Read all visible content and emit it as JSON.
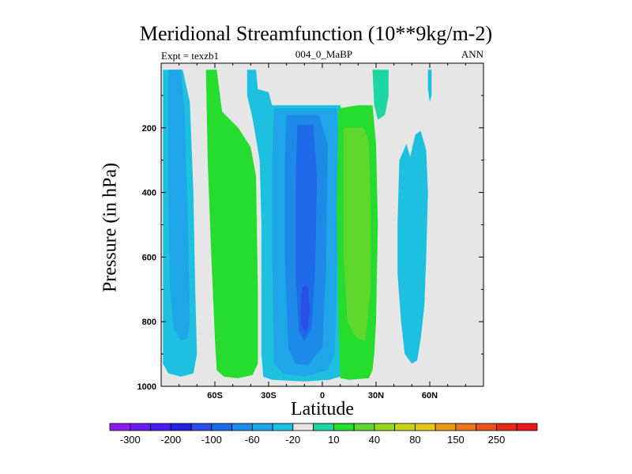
{
  "chart_data": {
    "type": "heatmap",
    "subtype": "filled-contour",
    "title": "Meridional Streamfunction (10**9kg/m-2)",
    "left_string": "Expt = texzb1",
    "center_string": "004_0_MaBP",
    "right_string": "ANN",
    "xlabel": "Latitude",
    "ylabel": "Pressure (in hPa)",
    "xlim": [
      -90,
      90
    ],
    "ylim": [
      1000,
      0
    ],
    "x_ticks": [
      {
        "value": -60,
        "label": "60S"
      },
      {
        "value": -30,
        "label": "30S"
      },
      {
        "value": 0,
        "label": "0"
      },
      {
        "value": 30,
        "label": "30N"
      },
      {
        "value": 60,
        "label": "60N"
      }
    ],
    "y_ticks": [
      {
        "value": 200,
        "label": "200"
      },
      {
        "value": 400,
        "label": "400"
      },
      {
        "value": 600,
        "label": "600"
      },
      {
        "value": 800,
        "label": "800"
      },
      {
        "value": 1000,
        "label": "1000"
      }
    ],
    "background_color": "#e6e6e6",
    "colorbar": {
      "colors": [
        "#8a1ef0",
        "#6a1cf0",
        "#4a1ef0",
        "#2222e0",
        "#2a4ee8",
        "#1e6ae8",
        "#1e8ae8",
        "#1ea6e8",
        "#1ec0e0",
        "#e6e6e6",
        "#1ed6a0",
        "#26dc2e",
        "#5ed82a",
        "#96d81e",
        "#c6d21a",
        "#e6c81a",
        "#e69a1a",
        "#e6781a",
        "#e6521a",
        "#e62a1a",
        "#e61a1a"
      ],
      "labels": [
        "-300",
        "-200",
        "-100",
        "-60",
        "-20",
        "10",
        "40",
        "80",
        "150",
        "250"
      ]
    },
    "regions": [
      {
        "color": "#1ec0e0",
        "points": [
          [
            -89,
            20
          ],
          [
            -78,
            20
          ],
          [
            -74,
            120
          ],
          [
            -72,
            400
          ],
          [
            -71,
            700
          ],
          [
            -70,
            900
          ],
          [
            -72,
            960
          ],
          [
            -79,
            970
          ],
          [
            -86,
            960
          ],
          [
            -89,
            930
          ]
        ]
      },
      {
        "color": "#1ea6e8",
        "points": [
          [
            -86,
            20
          ],
          [
            -79,
            20
          ],
          [
            -77,
            150
          ],
          [
            -75,
            500
          ],
          [
            -74,
            800
          ],
          [
            -75,
            850
          ],
          [
            -79,
            860
          ],
          [
            -83,
            820
          ],
          [
            -85,
            700
          ],
          [
            -86,
            400
          ],
          [
            -86,
            200
          ]
        ]
      },
      {
        "color": "#26dc2e",
        "points": [
          [
            -65,
            20
          ],
          [
            -59,
            20
          ],
          [
            -56,
            150
          ],
          [
            -47,
            200
          ],
          [
            -40,
            260
          ],
          [
            -37,
            350
          ],
          [
            -36,
            700
          ],
          [
            -36,
            930
          ],
          [
            -39,
            965
          ],
          [
            -47,
            975
          ],
          [
            -55,
            970
          ],
          [
            -59,
            950
          ],
          [
            -60,
            850
          ],
          [
            -62,
            600
          ],
          [
            -64,
            300
          ]
        ]
      },
      {
        "color": "#1ec0e0",
        "points": [
          [
            -42,
            20
          ],
          [
            -37,
            20
          ],
          [
            -36,
            80
          ],
          [
            -30,
            90
          ],
          [
            -28,
            130
          ],
          [
            10,
            130
          ],
          [
            13,
            200
          ],
          [
            11,
            600
          ],
          [
            10,
            970
          ],
          [
            4,
            980
          ],
          [
            -10,
            985
          ],
          [
            -28,
            980
          ],
          [
            -33,
            970
          ],
          [
            -34,
            900
          ],
          [
            -34,
            500
          ],
          [
            -35,
            300
          ],
          [
            -39,
            170
          ],
          [
            -42,
            100
          ]
        ]
      },
      {
        "color": "#1ea6e8",
        "points": [
          [
            -27,
            140
          ],
          [
            8,
            140
          ],
          [
            10,
            300
          ],
          [
            8,
            650
          ],
          [
            7,
            900
          ],
          [
            3,
            950
          ],
          [
            -10,
            970
          ],
          [
            -22,
            960
          ],
          [
            -27,
            930
          ],
          [
            -28,
            600
          ],
          [
            -28,
            300
          ]
        ]
      },
      {
        "color": "#1e8ae8",
        "points": [
          [
            -20,
            160
          ],
          [
            -2,
            160
          ],
          [
            3,
            250
          ],
          [
            2,
            650
          ],
          [
            0,
            880
          ],
          [
            -8,
            935
          ],
          [
            -15,
            930
          ],
          [
            -19,
            880
          ],
          [
            -21,
            600
          ],
          [
            -21,
            300
          ]
        ]
      },
      {
        "color": "#1e6ae8",
        "points": [
          [
            -14,
            190
          ],
          [
            -5,
            190
          ],
          [
            -3,
            350
          ],
          [
            -4,
            650
          ],
          [
            -6,
            820
          ],
          [
            -10,
            860
          ],
          [
            -13,
            830
          ],
          [
            -15,
            650
          ],
          [
            -15,
            400
          ]
        ]
      },
      {
        "color": "#2a4ee8",
        "points": [
          [
            -11,
            690
          ],
          [
            -8,
            690
          ],
          [
            -7,
            760
          ],
          [
            -8,
            820
          ],
          [
            -10,
            835
          ],
          [
            -12,
            800
          ],
          [
            -12,
            740
          ]
        ]
      },
      {
        "color": "#26dc2e",
        "points": [
          [
            9,
            140
          ],
          [
            20,
            130
          ],
          [
            28,
            130
          ],
          [
            30,
            250
          ],
          [
            31,
            500
          ],
          [
            30,
            800
          ],
          [
            29,
            900
          ],
          [
            28,
            950
          ],
          [
            26,
            975
          ],
          [
            15,
            980
          ],
          [
            10,
            975
          ],
          [
            9,
            800
          ],
          [
            8,
            450
          ]
        ]
      },
      {
        "color": "#5ed82a",
        "points": [
          [
            12,
            200
          ],
          [
            23,
            200
          ],
          [
            26,
            240
          ],
          [
            27,
            450
          ],
          [
            27,
            700
          ],
          [
            24,
            860
          ],
          [
            19,
            850
          ],
          [
            14,
            800
          ],
          [
            12,
            600
          ],
          [
            12,
            400
          ]
        ]
      },
      {
        "color": "#1ed6a0",
        "points": [
          [
            28,
            20
          ],
          [
            37,
            20
          ],
          [
            37,
            100
          ],
          [
            35,
            160
          ],
          [
            31,
            175
          ],
          [
            29,
            130
          ]
        ]
      },
      {
        "color": "#1ec0e0",
        "points": [
          [
            43,
            300
          ],
          [
            47,
            250
          ],
          [
            49,
            290
          ],
          [
            52,
            220
          ],
          [
            55,
            210
          ],
          [
            58,
            270
          ],
          [
            59,
            400
          ],
          [
            58,
            600
          ],
          [
            57,
            750
          ],
          [
            55,
            850
          ],
          [
            53,
            920
          ],
          [
            50,
            930
          ],
          [
            46,
            900
          ],
          [
            44,
            800
          ],
          [
            42,
            650
          ],
          [
            42,
            500
          ]
        ]
      },
      {
        "color": "#1ec0e0",
        "points": [
          [
            59,
            20
          ],
          [
            61,
            20
          ],
          [
            61,
            100
          ],
          [
            60,
            120
          ],
          [
            59,
            80
          ]
        ]
      }
    ]
  }
}
